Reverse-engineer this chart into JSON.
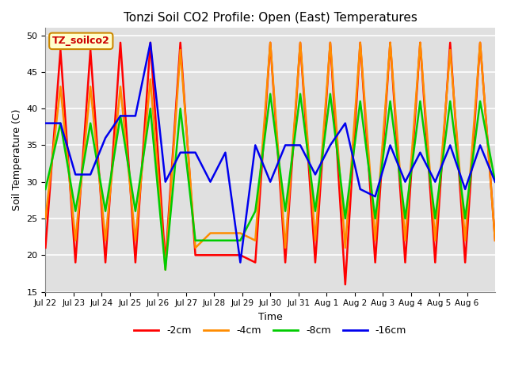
{
  "title": "Tonzi Soil CO2 Profile: Open (East) Temperatures",
  "xlabel": "Time",
  "ylabel": "Soil Temperature (C)",
  "ylim": [
    15,
    51
  ],
  "yticks": [
    15,
    20,
    25,
    30,
    35,
    40,
    45,
    50
  ],
  "annotation_text": "TZ_soilco2",
  "annotation_bg": "#FFFFCC",
  "annotation_edge": "#CC8800",
  "annotation_text_color": "#CC0000",
  "colors": {
    "-2cm": "#FF0000",
    "-4cm": "#FF8C00",
    "-8cm": "#00CC00",
    "-16cm": "#0000EE"
  },
  "legend_labels": [
    "-2cm",
    "-4cm",
    "-8cm",
    "-16cm"
  ],
  "plot_bg": "#E0E0E0",
  "x_tick_labels": [
    "Jul 22",
    "Jul 23",
    "Jul 24",
    "Jul 25",
    "Jul 26",
    "Jul 27",
    "Jul 28",
    "Jul 29",
    "Jul 30",
    "Jul 31",
    "Aug 1",
    "Aug 2",
    "Aug 3",
    "Aug 4",
    "Aug 5",
    "Aug 6"
  ],
  "data_2cm": [
    21,
    48,
    19,
    48,
    19,
    49,
    19,
    49,
    19,
    49,
    20,
    20,
    20,
    20,
    19,
    49,
    19,
    49,
    19,
    49,
    16,
    49,
    19,
    49,
    19,
    49,
    19,
    49,
    19,
    49,
    22
  ],
  "data_4cm": [
    25,
    43,
    22,
    43,
    22,
    43,
    22,
    44,
    18,
    48,
    21,
    23,
    23,
    23,
    22,
    49,
    21,
    49,
    22,
    49,
    21,
    49,
    22,
    49,
    22,
    49,
    22,
    48,
    22,
    49,
    22
  ],
  "data_8cm": [
    29,
    38,
    26,
    38,
    26,
    39,
    26,
    40,
    18,
    40,
    22,
    22,
    22,
    22,
    26,
    42,
    26,
    42,
    26,
    42,
    25,
    41,
    25,
    41,
    25,
    41,
    25,
    41,
    25,
    41,
    30
  ],
  "data_16cm": [
    38,
    38,
    31,
    31,
    36,
    39,
    39,
    49,
    30,
    34,
    34,
    30,
    34,
    19,
    35,
    30,
    35,
    35,
    31,
    35,
    38,
    29,
    28,
    35,
    30,
    34,
    30,
    35,
    29,
    35,
    30
  ],
  "n_pts": 31
}
